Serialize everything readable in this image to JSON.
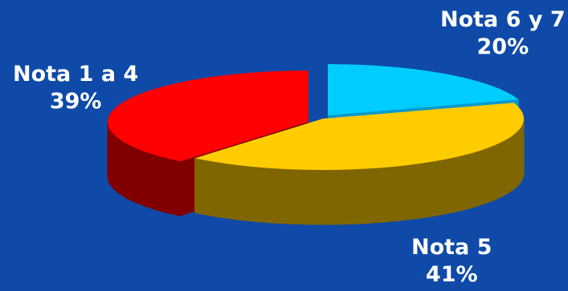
{
  "chart_data": {
    "type": "pie",
    "style": "3d-exploded",
    "slices": [
      {
        "label": "Nota 6 y 7",
        "value": 20,
        "value_label": "20%",
        "color": "#00ccff",
        "side_color": "#0099cc"
      },
      {
        "label": "Nota 5",
        "value": 41,
        "value_label": "41%",
        "color": "#ffcc00",
        "side_color": "#806600"
      },
      {
        "label": "Nota 1 a 4",
        "value": 39,
        "value_label": "39%",
        "color": "#ff0000",
        "side_color": "#800000"
      }
    ],
    "background": "#0f4aa8",
    "label_color": "#ffffff"
  }
}
